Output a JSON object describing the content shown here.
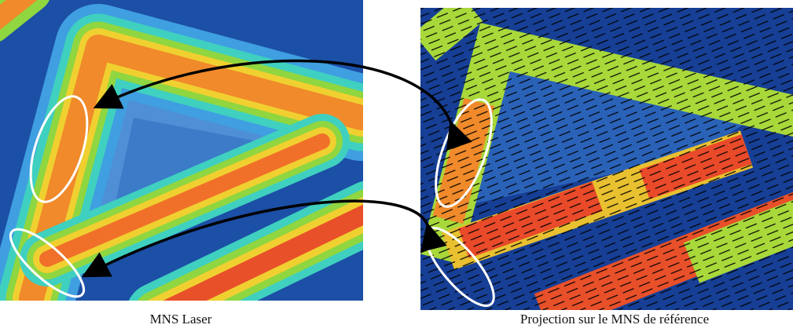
{
  "figure": {
    "left_caption": "MNS Laser",
    "right_caption": "Projection sur le MNS de référence"
  }
}
